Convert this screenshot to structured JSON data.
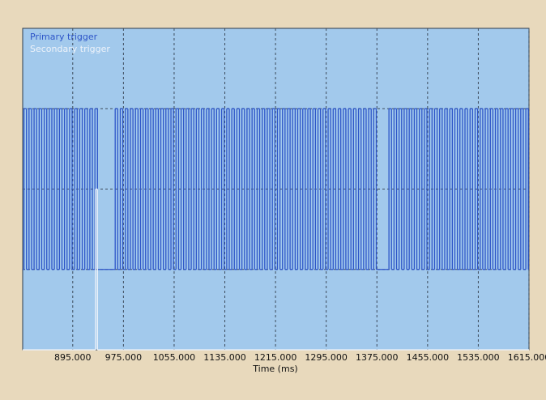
{
  "chart_data": {
    "type": "step",
    "x_label": "Time (ms)",
    "xlim": [
      816,
      1615
    ],
    "ylim": [
      0,
      4
    ],
    "xticks": [
      {
        "value": 895,
        "label": "895.000"
      },
      {
        "value": 975,
        "label": "975.000"
      },
      {
        "value": 1055,
        "label": "1055.000"
      },
      {
        "value": 1135,
        "label": "1135.000"
      },
      {
        "value": 1215,
        "label": "1215.000"
      },
      {
        "value": 1295,
        "label": "1295.000"
      },
      {
        "value": 1375,
        "label": "1375.000"
      },
      {
        "value": 1455,
        "label": "1455.000"
      },
      {
        "value": 1535,
        "label": "1535.000"
      },
      {
        "value": 1615,
        "label": "1615.000"
      }
    ],
    "yticks": [
      1,
      2,
      3
    ],
    "grid": true,
    "legend": "top-left",
    "series": [
      {
        "name": "Primary trigger",
        "color": "#2d55c8",
        "x": [
          816,
          818,
          822,
          826,
          830,
          834,
          838,
          842,
          846,
          850,
          854,
          858,
          862,
          866,
          870,
          874,
          878,
          882,
          886,
          890,
          894,
          898,
          902,
          906,
          910,
          914,
          918,
          922,
          926,
          930,
          934,
          962,
          966,
          970,
          974,
          978,
          982,
          986,
          990,
          994,
          998,
          1002,
          1006,
          1010,
          1014,
          1018,
          1022,
          1026,
          1030,
          1034,
          1038,
          1042,
          1046,
          1050,
          1054,
          1058,
          1062,
          1066,
          1070,
          1074,
          1078,
          1082,
          1086,
          1090,
          1094,
          1098,
          1102,
          1106,
          1110,
          1114,
          1118,
          1122,
          1126,
          1130,
          1134,
          1138,
          1142,
          1146,
          1150,
          1154,
          1158,
          1162,
          1166,
          1170,
          1174,
          1178,
          1182,
          1186,
          1190,
          1194,
          1198,
          1202,
          1206,
          1210,
          1214,
          1218,
          1222,
          1226,
          1230,
          1234,
          1238,
          1242,
          1246,
          1250,
          1254,
          1258,
          1262,
          1266,
          1270,
          1274,
          1278,
          1282,
          1286,
          1290,
          1294,
          1298,
          1302,
          1306,
          1310,
          1314,
          1318,
          1322,
          1326,
          1330,
          1334,
          1338,
          1342,
          1346,
          1350,
          1354,
          1358,
          1362,
          1366,
          1370,
          1374,
          1394,
          1398,
          1402,
          1406,
          1410,
          1414,
          1418,
          1422,
          1426,
          1430,
          1434,
          1438,
          1442,
          1446,
          1450,
          1454,
          1458,
          1462,
          1466,
          1470,
          1474,
          1478,
          1482,
          1486,
          1490,
          1494,
          1498,
          1502,
          1506,
          1510,
          1514,
          1518,
          1522,
          1526,
          1530,
          1534,
          1538,
          1542,
          1546,
          1550,
          1554,
          1558,
          1562,
          1566,
          1570,
          1574,
          1578,
          1582,
          1586,
          1590,
          1594,
          1598,
          1602,
          1606,
          1610,
          1614
        ],
        "values": [
          1,
          3,
          1,
          3,
          1,
          3,
          1,
          3,
          1,
          3,
          1,
          3,
          1,
          3,
          1,
          3,
          1,
          3,
          1,
          3,
          1,
          3,
          1,
          3,
          1,
          3,
          1,
          3,
          1,
          3,
          1,
          3,
          1,
          3,
          1,
          3,
          1,
          3,
          1,
          3,
          1,
          3,
          1,
          3,
          1,
          3,
          1,
          3,
          1,
          3,
          1,
          3,
          1,
          3,
          1,
          3,
          1,
          3,
          1,
          3,
          1,
          3,
          1,
          3,
          1,
          3,
          1,
          3,
          1,
          3,
          1,
          3,
          1,
          3,
          1,
          3,
          1,
          3,
          1,
          3,
          1,
          3,
          1,
          3,
          1,
          3,
          1,
          3,
          1,
          3,
          1,
          3,
          1,
          3,
          1,
          3,
          1,
          3,
          1,
          3,
          1,
          3,
          1,
          3,
          1,
          3,
          1,
          3,
          1,
          3,
          1,
          3,
          1,
          3,
          1,
          3,
          1,
          3,
          1,
          3,
          1,
          3,
          1,
          3,
          1,
          3,
          1,
          3,
          1,
          3,
          1,
          3,
          1,
          3,
          1,
          3,
          1,
          3,
          1,
          3,
          1,
          3,
          1,
          3,
          1,
          3,
          1,
          3,
          1,
          3,
          1,
          3,
          1,
          3,
          1,
          3,
          1,
          3,
          1,
          3,
          1,
          3,
          1,
          3,
          1,
          3,
          1,
          3,
          1,
          3,
          1,
          3,
          1,
          3,
          1,
          3,
          1,
          3,
          1,
          3,
          1,
          3,
          1,
          3,
          1,
          3,
          1,
          3,
          1,
          3,
          1
        ]
      },
      {
        "name": "Secondary trigger",
        "color": "#eef3fa",
        "x": [
          816,
          931,
          934
        ],
        "values": [
          0,
          2,
          0
        ]
      }
    ]
  }
}
